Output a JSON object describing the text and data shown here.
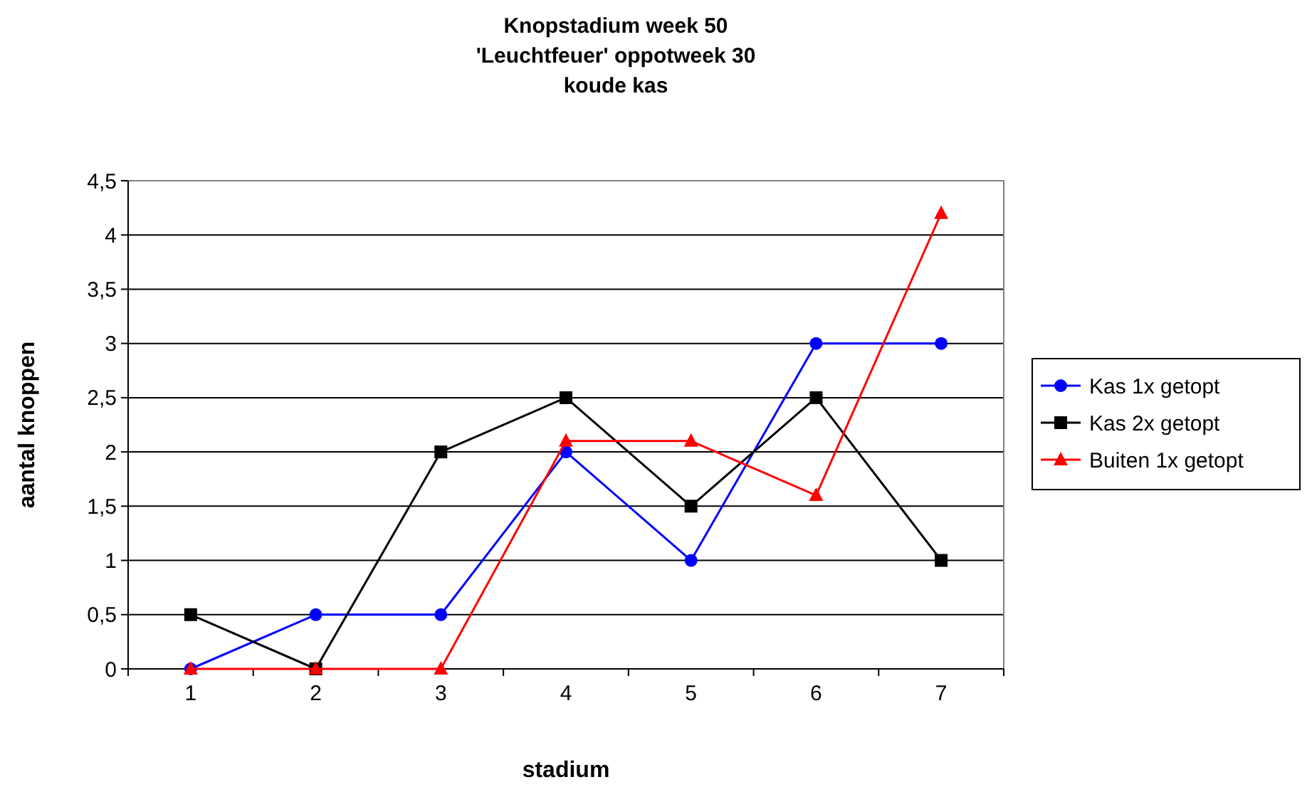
{
  "chart_data": {
    "type": "line",
    "title": "Knopstadium week 50\n'Leuchtfeuer' oppotweek 30\nkoude kas",
    "xlabel": "stadium",
    "ylabel": "aantal knoppen",
    "categories": [
      "1",
      "2",
      "3",
      "4",
      "5",
      "6",
      "7"
    ],
    "series": [
      {
        "name": "Kas 1x getopt",
        "color": "#0000ff",
        "marker": "circle",
        "values": [
          0,
          0.5,
          0.5,
          2,
          1,
          3,
          3
        ]
      },
      {
        "name": "Kas 2x getopt",
        "color": "#000000",
        "marker": "square",
        "values": [
          0.5,
          0,
          2,
          2.5,
          1.5,
          2.5,
          1
        ]
      },
      {
        "name": "Buiten 1x getopt",
        "color": "#ff0000",
        "marker": "triangle",
        "values": [
          0,
          0,
          0,
          2.1,
          2.1,
          1.6,
          4.2
        ]
      }
    ],
    "ylim": [
      0,
      4.5
    ],
    "yticks": [
      0,
      {
        "value": 0.5,
        "label": "0,5"
      },
      1,
      {
        "value": 1.5,
        "label": "1,5"
      },
      2,
      {
        "value": 2.5,
        "label": "2,5"
      },
      3,
      {
        "value": 3.5,
        "label": "3,5"
      },
      4,
      {
        "value": 4.5,
        "label": "4,5"
      }
    ],
    "grid": "y",
    "legend": "right"
  }
}
